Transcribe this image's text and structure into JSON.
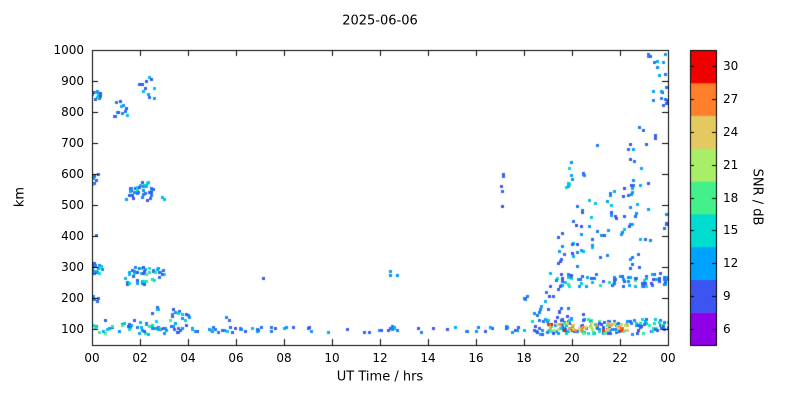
{
  "chart_data": {
    "type": "scatter",
    "title": "2025-06-06",
    "xlabel": "UT Time / hrs",
    "ylabel": "km",
    "colorbar_label": "SNR / dB",
    "xlim": [
      0,
      24
    ],
    "ylim": [
      50,
      1000
    ],
    "snr_range": [
      6,
      30
    ],
    "x_ticks": {
      "values": [
        0,
        2,
        4,
        6,
        8,
        10,
        12,
        14,
        16,
        18,
        20,
        22,
        24
      ],
      "labels": [
        "00",
        "02",
        "04",
        "06",
        "08",
        "10",
        "12",
        "14",
        "16",
        "18",
        "20",
        "22",
        "00"
      ]
    },
    "y_ticks": [
      100,
      200,
      300,
      400,
      500,
      600,
      700,
      800,
      900,
      1000
    ],
    "cb_ticks": [
      6,
      9,
      12,
      15,
      18,
      21,
      24,
      27,
      30
    ],
    "grid": false,
    "point_shape": "square",
    "clusters": [
      {
        "x": [
          0.0,
          0.45
        ],
        "y": [
          840,
          880
        ],
        "n": 10,
        "snr": [
          9,
          16
        ]
      },
      {
        "x": [
          0.9,
          1.5
        ],
        "y": [
          785,
          840
        ],
        "n": 12,
        "snr": [
          9,
          14
        ]
      },
      {
        "x": [
          1.9,
          2.6
        ],
        "y": [
          830,
          915
        ],
        "n": 14,
        "snr": [
          9,
          15
        ]
      },
      {
        "x": [
          0.0,
          0.3
        ],
        "y": [
          560,
          605
        ],
        "n": 10,
        "snr": [
          9,
          14
        ]
      },
      {
        "x": [
          1.4,
          2.6
        ],
        "y": [
          515,
          575
        ],
        "n": 34,
        "snr": [
          9,
          16
        ]
      },
      {
        "x": [
          2.9,
          3.15
        ],
        "y": [
          515,
          535
        ],
        "n": 2,
        "snr": [
          13,
          16
        ]
      },
      {
        "x": [
          0.0,
          0.5
        ],
        "y": [
          280,
          315
        ],
        "n": 14,
        "snr": [
          9,
          16
        ]
      },
      {
        "x": [
          0.0,
          0.25
        ],
        "y": [
          185,
          210
        ],
        "n": 4,
        "snr": [
          9,
          12
        ]
      },
      {
        "x": [
          0.05,
          0.2
        ],
        "y": [
          395,
          410
        ],
        "n": 1,
        "snr": [
          9,
          11
        ]
      },
      {
        "x": [
          1.3,
          3.0
        ],
        "y": [
          245,
          305
        ],
        "n": 44,
        "snr": [
          9,
          18
        ]
      },
      {
        "x": [
          0.0,
          3.3
        ],
        "y": [
          85,
          130
        ],
        "n": 46,
        "snr": [
          9,
          18
        ]
      },
      {
        "x": [
          3.3,
          4.1
        ],
        "y": [
          115,
          170
        ],
        "n": 14,
        "snr": [
          9,
          15
        ]
      },
      {
        "x": [
          2.4,
          2.75
        ],
        "y": [
          150,
          180
        ],
        "n": 4,
        "snr": [
          9,
          13
        ]
      },
      {
        "x": [
          3.0,
          4.3
        ],
        "y": [
          88,
          112
        ],
        "n": 12,
        "snr": [
          9,
          15
        ]
      },
      {
        "x": [
          4.2,
          8.0
        ],
        "y": [
          92,
          108
        ],
        "n": 26,
        "snr": [
          9,
          15
        ]
      },
      {
        "x": [
          5.5,
          5.75
        ],
        "y": [
          122,
          140
        ],
        "n": 2,
        "snr": [
          9,
          13
        ]
      },
      {
        "x": [
          8.0,
          17.0
        ],
        "y": [
          92,
          108
        ],
        "n": 26,
        "snr": [
          9,
          14
        ]
      },
      {
        "x": [
          7.1,
          7.3
        ],
        "y": [
          263,
          275
        ],
        "n": 1,
        "snr": [
          9,
          11
        ]
      },
      {
        "x": [
          12.4,
          12.9
        ],
        "y": [
          248,
          292
        ],
        "n": 3,
        "snr": [
          10,
          14
        ]
      },
      {
        "x": [
          12.3,
          12.75
        ],
        "y": [
          94,
          116
        ],
        "n": 7,
        "snr": [
          10,
          16
        ]
      },
      {
        "x": [
          16.8,
          17.15
        ],
        "y": [
          535,
          605
        ],
        "n": 4,
        "snr": [
          9,
          12
        ]
      },
      {
        "x": [
          16.9,
          17.1
        ],
        "y": [
          478,
          500
        ],
        "n": 1,
        "snr": [
          9,
          11
        ]
      },
      {
        "x": [
          17.2,
          18.3
        ],
        "y": [
          92,
          112
        ],
        "n": 10,
        "snr": [
          9,
          14
        ]
      },
      {
        "x": [
          17.9,
          18.15
        ],
        "y": [
          193,
          215
        ],
        "n": 3,
        "snr": [
          9,
          12
        ]
      },
      {
        "x": [
          18.4,
          19.0
        ],
        "y": [
          140,
          230
        ],
        "n": 8,
        "snr": [
          9,
          13
        ]
      },
      {
        "x": [
          18.3,
          24.0
        ],
        "y": [
          85,
          135
        ],
        "n": 150,
        "snr": [
          9,
          19
        ]
      },
      {
        "x": [
          19.0,
          22.3
        ],
        "y": [
          95,
          122
        ],
        "n": 48,
        "snr": [
          21,
          30
        ]
      },
      {
        "x": [
          19.0,
          24.0
        ],
        "y": [
          238,
          282
        ],
        "n": 72,
        "snr": [
          9,
          17
        ]
      },
      {
        "x": [
          19.0,
          19.6
        ],
        "y": [
          198,
          245
        ],
        "n": 6,
        "snr": [
          9,
          13
        ]
      },
      {
        "x": [
          19.2,
          20.5
        ],
        "y": [
          135,
          185
        ],
        "n": 8,
        "snr": [
          9,
          15
        ]
      },
      {
        "x": [
          19.3,
          20.3
        ],
        "y": [
          300,
          420
        ],
        "n": 12,
        "snr": [
          9,
          13
        ]
      },
      {
        "x": [
          19.7,
          20.0
        ],
        "y": [
          550,
          650
        ],
        "n": 8,
        "snr": [
          11,
          15
        ]
      },
      {
        "x": [
          20.3,
          20.65
        ],
        "y": [
          595,
          660
        ],
        "n": 3,
        "snr": [
          9,
          13
        ]
      },
      {
        "x": [
          20.0,
          21.5
        ],
        "y": [
          330,
          520
        ],
        "n": 25,
        "snr": [
          9,
          14
        ]
      },
      {
        "x": [
          21.5,
          23.3
        ],
        "y": [
          380,
          560
        ],
        "n": 30,
        "snr": [
          9,
          14
        ]
      },
      {
        "x": [
          22.3,
          23.3
        ],
        "y": [
          560,
          700
        ],
        "n": 12,
        "snr": [
          9,
          13
        ]
      },
      {
        "x": [
          22.4,
          23.0
        ],
        "y": [
          290,
          345
        ],
        "n": 6,
        "snr": [
          9,
          13
        ]
      },
      {
        "x": [
          21.0,
          21.2
        ],
        "y": [
          688,
          712
        ],
        "n": 1,
        "snr": [
          9,
          11
        ]
      },
      {
        "x": [
          22.6,
          23.0
        ],
        "y": [
          728,
          762
        ],
        "n": 2,
        "snr": [
          9,
          11
        ]
      },
      {
        "x": [
          23.4,
          23.6
        ],
        "y": [
          698,
          732
        ],
        "n": 2,
        "snr": [
          9,
          12
        ]
      },
      {
        "x": [
          23.0,
          23.9
        ],
        "y": [
          918,
          995
        ],
        "n": 10,
        "snr": [
          9,
          13
        ]
      },
      {
        "x": [
          23.3,
          23.95
        ],
        "y": [
          818,
          890
        ],
        "n": 8,
        "snr": [
          9,
          13
        ]
      },
      {
        "x": [
          23.85,
          24.0
        ],
        "y": [
          818,
          852
        ],
        "n": 2,
        "snr": [
          9,
          11
        ]
      },
      {
        "x": [
          23.5,
          24.0
        ],
        "y": [
          420,
          472
        ],
        "n": 4,
        "snr": [
          9,
          12
        ]
      },
      {
        "x": [
          23.8,
          24.0
        ],
        "y": [
          246,
          272
        ],
        "n": 6,
        "snr": [
          9,
          14
        ]
      }
    ]
  },
  "palette": [
    {
      "value": 6,
      "color": "#8f00e8"
    },
    {
      "value": 9,
      "color": "#3c55f0"
    },
    {
      "value": 12,
      "color": "#00a2ff"
    },
    {
      "value": 15,
      "color": "#00dcd0"
    },
    {
      "value": 18,
      "color": "#44f08c"
    },
    {
      "value": 21,
      "color": "#a8ee66"
    },
    {
      "value": 24,
      "color": "#e2ca60"
    },
    {
      "value": 27,
      "color": "#ff7f2a"
    },
    {
      "value": 30,
      "color": "#ee0000"
    }
  ]
}
